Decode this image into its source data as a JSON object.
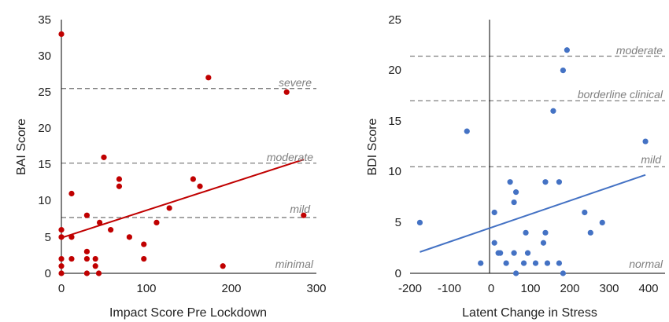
{
  "chart_data": [
    {
      "type": "scatter",
      "xlabel": "Impact Score Pre Lockdown",
      "ylabel": "BAI Score",
      "xlim": [
        0,
        300
      ],
      "ylim": [
        0,
        35
      ],
      "xticks": [
        "0",
        "100",
        "200",
        "300"
      ],
      "yticks": [
        "0",
        "5",
        "10",
        "15",
        "20",
        "25",
        "30",
        "35"
      ],
      "grid": false,
      "color": "#c00000",
      "points": [
        {
          "x": 0,
          "y": 33
        },
        {
          "x": 0,
          "y": 6
        },
        {
          "x": 0,
          "y": 5
        },
        {
          "x": 0,
          "y": 2
        },
        {
          "x": 0,
          "y": 1
        },
        {
          "x": 0,
          "y": 0
        },
        {
          "x": 12,
          "y": 11
        },
        {
          "x": 12,
          "y": 5
        },
        {
          "x": 12,
          "y": 2
        },
        {
          "x": 30,
          "y": 8
        },
        {
          "x": 30,
          "y": 3
        },
        {
          "x": 30,
          "y": 2
        },
        {
          "x": 30,
          "y": 0
        },
        {
          "x": 40,
          "y": 2
        },
        {
          "x": 40,
          "y": 1
        },
        {
          "x": 44,
          "y": 0
        },
        {
          "x": 50,
          "y": 16
        },
        {
          "x": 45,
          "y": 7
        },
        {
          "x": 58,
          "y": 6
        },
        {
          "x": 68,
          "y": 13
        },
        {
          "x": 68,
          "y": 12
        },
        {
          "x": 80,
          "y": 5
        },
        {
          "x": 97,
          "y": 4
        },
        {
          "x": 97,
          "y": 2
        },
        {
          "x": 112,
          "y": 7
        },
        {
          "x": 127,
          "y": 9
        },
        {
          "x": 155,
          "y": 13
        },
        {
          "x": 163,
          "y": 12
        },
        {
          "x": 173,
          "y": 27
        },
        {
          "x": 190,
          "y": 1
        },
        {
          "x": 265,
          "y": 25
        },
        {
          "x": 285,
          "y": 8
        }
      ],
      "trendline": {
        "x": [
          0,
          285
        ],
        "y": [
          4.9,
          15.7
        ]
      },
      "reference_lines": [
        {
          "y": 25.5,
          "label": "severe"
        },
        {
          "y": 15.2,
          "label": "moderate"
        },
        {
          "y": 7.7,
          "label": "mild"
        },
        {
          "y": null,
          "label": "minimal"
        }
      ]
    },
    {
      "type": "scatter",
      "xlabel": "Latent Change in Stress",
      "ylabel": "BDI Score",
      "xlim": [
        -200,
        450
      ],
      "ylim": [
        0,
        25
      ],
      "xticks": [
        "-200",
        "-100",
        "0",
        "100",
        "200",
        "300",
        "400"
      ],
      "yticks": [
        "0",
        "5",
        "10",
        "15",
        "20",
        "25"
      ],
      "grid": false,
      "color": "#4472c4",
      "points": [
        {
          "x": -175,
          "y": 5
        },
        {
          "x": -55,
          "y": 14
        },
        {
          "x": -20,
          "y": 1
        },
        {
          "x": 15,
          "y": 6
        },
        {
          "x": 15,
          "y": 3
        },
        {
          "x": 25,
          "y": 2
        },
        {
          "x": 30,
          "y": 2
        },
        {
          "x": 45,
          "y": 1
        },
        {
          "x": 55,
          "y": 9
        },
        {
          "x": 65,
          "y": 7
        },
        {
          "x": 70,
          "y": 8
        },
        {
          "x": 65,
          "y": 2
        },
        {
          "x": 70,
          "y": 0
        },
        {
          "x": 90,
          "y": 1
        },
        {
          "x": 95,
          "y": 4
        },
        {
          "x": 100,
          "y": 2
        },
        {
          "x": 120,
          "y": 1
        },
        {
          "x": 140,
          "y": 3
        },
        {
          "x": 145,
          "y": 4
        },
        {
          "x": 145,
          "y": 9
        },
        {
          "x": 150,
          "y": 1
        },
        {
          "x": 165,
          "y": 16
        },
        {
          "x": 180,
          "y": 9
        },
        {
          "x": 180,
          "y": 1
        },
        {
          "x": 190,
          "y": 0
        },
        {
          "x": 190,
          "y": 20
        },
        {
          "x": 200,
          "y": 22
        },
        {
          "x": 245,
          "y": 6
        },
        {
          "x": 260,
          "y": 4
        },
        {
          "x": 290,
          "y": 5
        },
        {
          "x": 400,
          "y": 13
        }
      ],
      "trendline": {
        "x": [
          -175,
          400
        ],
        "y": [
          2.1,
          9.7
        ]
      },
      "reference_lines": [
        {
          "y": 21.4,
          "label": "moderate"
        },
        {
          "y": 17.0,
          "label": "borderline clinical"
        },
        {
          "y": 10.5,
          "label": "mild"
        },
        {
          "y": null,
          "label": "normal"
        }
      ],
      "vertical_line_x": 0
    }
  ]
}
